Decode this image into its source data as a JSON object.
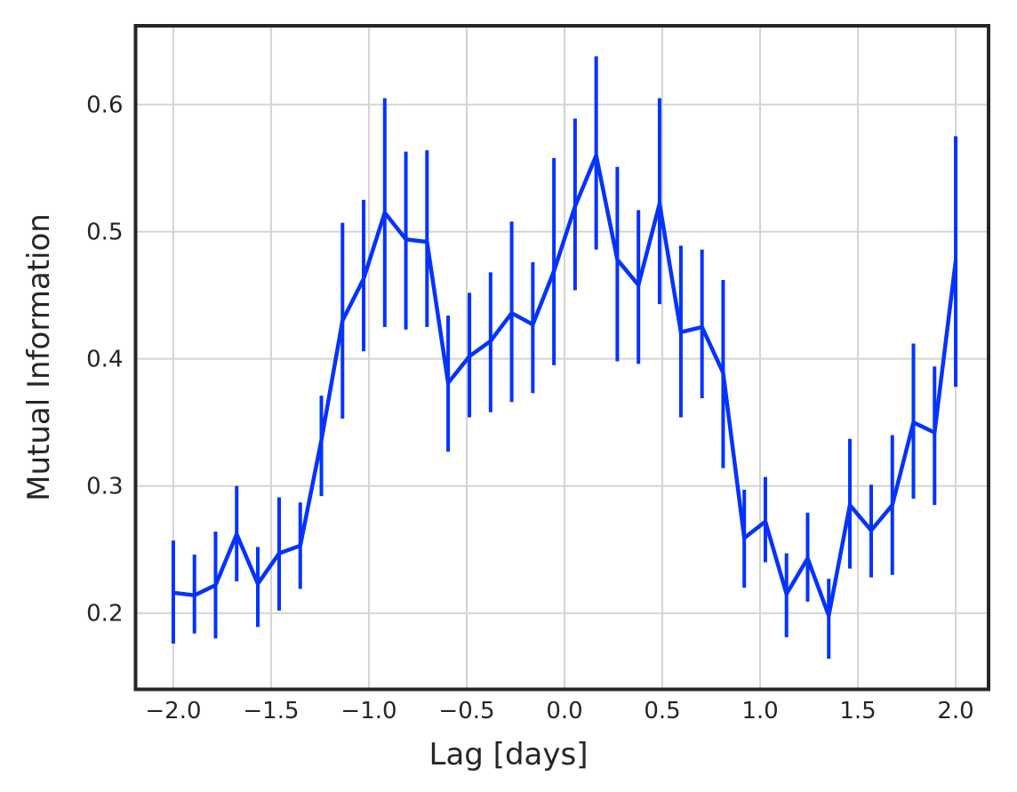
{
  "chart_data": {
    "type": "line",
    "title": "",
    "xlabel": "Lag [days]",
    "ylabel": "Mutual Information",
    "grid": true,
    "legend": "none",
    "xlim": [
      -2.193,
      2.168
    ],
    "ylim": [
      0.14,
      0.662
    ],
    "xticks": [
      -2.0,
      -1.5,
      -1.0,
      -0.5,
      0.0,
      0.5,
      1.0,
      1.5,
      2.0
    ],
    "yticks": [
      0.2,
      0.3,
      0.4,
      0.5,
      0.6
    ],
    "x": [
      -2.0,
      -1.892,
      -1.784,
      -1.676,
      -1.568,
      -1.459,
      -1.351,
      -1.243,
      -1.135,
      -1.027,
      -0.919,
      -0.811,
      -0.703,
      -0.595,
      -0.486,
      -0.378,
      -0.27,
      -0.162,
      -0.054,
      0.054,
      0.162,
      0.27,
      0.378,
      0.486,
      0.595,
      0.703,
      0.811,
      0.919,
      1.027,
      1.135,
      1.243,
      1.351,
      1.459,
      1.568,
      1.676,
      1.784,
      1.892,
      2.0
    ],
    "series": [
      {
        "name": "mutual-information",
        "values": [
          0.216,
          0.214,
          0.222,
          0.262,
          0.223,
          0.247,
          0.253,
          0.336,
          0.43,
          0.463,
          0.515,
          0.494,
          0.492,
          0.381,
          0.402,
          0.414,
          0.436,
          0.427,
          0.469,
          0.52,
          0.56,
          0.478,
          0.458,
          0.522,
          0.421,
          0.425,
          0.389,
          0.259,
          0.272,
          0.215,
          0.243,
          0.198,
          0.285,
          0.265,
          0.285,
          0.35,
          0.342,
          0.477
        ],
        "err_lo": [
          0.176,
          0.184,
          0.18,
          0.225,
          0.189,
          0.202,
          0.219,
          0.292,
          0.353,
          0.406,
          0.425,
          0.423,
          0.425,
          0.327,
          0.354,
          0.358,
          0.366,
          0.373,
          0.395,
          0.454,
          0.486,
          0.398,
          0.396,
          0.443,
          0.354,
          0.369,
          0.314,
          0.22,
          0.24,
          0.181,
          0.209,
          0.164,
          0.235,
          0.228,
          0.23,
          0.29,
          0.285,
          0.378
        ],
        "err_hi": [
          0.257,
          0.246,
          0.264,
          0.3,
          0.252,
          0.291,
          0.287,
          0.371,
          0.507,
          0.525,
          0.605,
          0.563,
          0.564,
          0.434,
          0.452,
          0.468,
          0.508,
          0.476,
          0.558,
          0.589,
          0.638,
          0.551,
          0.517,
          0.605,
          0.489,
          0.486,
          0.462,
          0.297,
          0.307,
          0.247,
          0.279,
          0.227,
          0.337,
          0.301,
          0.34,
          0.412,
          0.394,
          0.575
        ]
      }
    ],
    "colors": {
      "line": "#0433ff",
      "grid": "#d4d4d4",
      "spine": "#262626",
      "tick_text": "#262626",
      "background": "#ffffff"
    }
  }
}
